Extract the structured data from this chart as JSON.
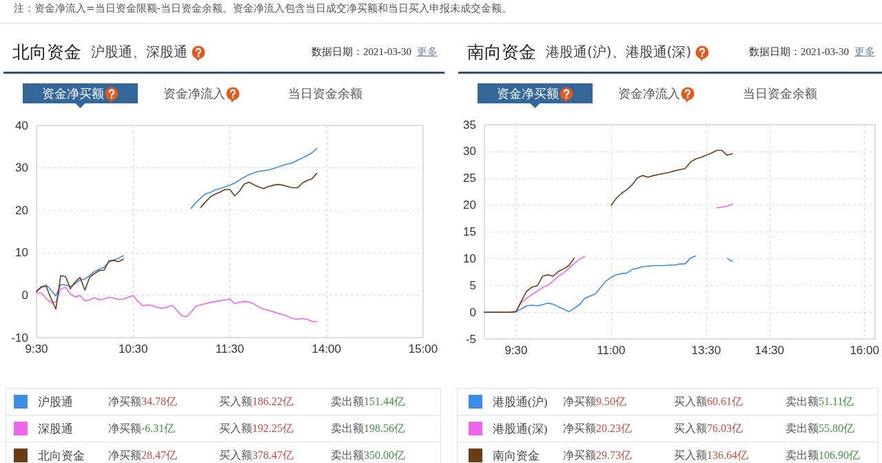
{
  "chart_data": [
    {
      "type": "line",
      "title": "北向资金",
      "subtitle": "沪股通、深股通",
      "categories": [
        "9:30",
        null,
        null,
        null,
        null,
        null,
        null,
        null,
        null,
        null,
        null,
        null,
        null,
        null,
        null,
        null,
        null,
        null,
        null,
        null,
        "10:30",
        null,
        null,
        null,
        null,
        null,
        null,
        null,
        null,
        null,
        null,
        null,
        null,
        null,
        null,
        null,
        null,
        null,
        null,
        null,
        "11:30",
        null,
        null,
        null,
        null,
        null,
        null,
        null,
        null,
        null,
        null,
        null,
        null,
        null,
        null,
        null,
        null,
        null,
        null,
        null,
        "14:00",
        null,
        null,
        null,
        null,
        null,
        null,
        null,
        null,
        null,
        null,
        null,
        null,
        null,
        null,
        null,
        null,
        null,
        null,
        null,
        "15:00"
      ],
      "ylim": [
        -10,
        40
      ],
      "yticks": [
        -10,
        0,
        10,
        20,
        30,
        40
      ],
      "grid": true,
      "legend": "bottom",
      "series": [
        {
          "name": "沪股通",
          "color": "#3a8ee8",
          "values": [
            0.8,
            1.8,
            2.4,
            1.2,
            -0.2,
            2.5,
            2.4,
            2.1,
            2.7,
            3.6,
            3.8,
            4.6,
            5.6,
            6.1,
            6.6,
            7.8,
            8.3,
            8.7,
            9.3,
            null,
            null,
            null,
            null,
            null,
            null,
            null,
            null,
            null,
            null,
            null,
            null,
            null,
            20.5,
            21.8,
            22.9,
            23.9,
            24.2,
            24.8,
            25.1,
            25.5,
            25.9,
            26.4,
            27.1,
            27.8,
            28.4,
            28.8,
            29.2,
            29.3,
            29.5,
            29.8,
            30.2,
            30.6,
            30.9,
            31.2,
            31.8,
            32.3,
            32.9,
            33.5,
            34.6,
            null,
            null,
            null,
            null,
            null,
            null,
            null,
            null,
            null,
            null,
            null,
            null,
            null,
            null,
            null,
            null,
            null,
            null,
            null,
            null,
            null,
            null
          ]
        },
        {
          "name": "深股通",
          "color": "#ee66ee",
          "values": [
            0.5,
            0.5,
            -0.8,
            -1.8,
            -1.6,
            1.5,
            1.8,
            0.3,
            -0.4,
            -0.1,
            -1.3,
            -1.1,
            -0.6,
            -1.1,
            -0.9,
            -0.5,
            -0.7,
            -1.0,
            -0.9,
            -0.5,
            -0.1,
            -1.5,
            -2.5,
            -2.3,
            -2.5,
            -2.9,
            -3.1,
            -2.8,
            -2.4,
            -3.5,
            -4.8,
            -5.1,
            -4.0,
            -2.6,
            -2.3,
            -2.0,
            -1.7,
            -1.5,
            -1.3,
            -1.1,
            -0.9,
            -2.0,
            -1.7,
            -1.5,
            -1.6,
            -2.1,
            -2.8,
            -3.3,
            -3.6,
            -3.9,
            -4.3,
            -4.6,
            -5.0,
            -5.5,
            -5.7,
            -5.5,
            -5.7,
            -6.2,
            -6.2,
            null,
            null,
            null,
            null,
            null,
            null,
            null,
            null,
            null,
            null,
            null,
            null,
            null,
            null,
            null,
            null,
            null,
            null,
            null,
            null,
            null,
            null
          ]
        },
        {
          "name": "北向资金",
          "color": "#6b3d14",
          "values": [
            0.9,
            2.0,
            2.1,
            -0.8,
            -3.3,
            4.6,
            4.4,
            1.5,
            3.1,
            4.2,
            1.2,
            4.2,
            5.1,
            5.8,
            5.9,
            8.1,
            8.2,
            7.9,
            8.5,
            null,
            null,
            null,
            null,
            null,
            null,
            null,
            null,
            null,
            null,
            null,
            null,
            null,
            null,
            null,
            20.7,
            22.0,
            23.2,
            23.8,
            24.3,
            24.9,
            24.9,
            23.4,
            24.5,
            26.2,
            26.6,
            26.0,
            25.5,
            25.1,
            25.6,
            25.9,
            26.1,
            25.9,
            25.6,
            25.3,
            25.3,
            26.4,
            27.0,
            27.4,
            28.7,
            null,
            null,
            null,
            null,
            null,
            null,
            null,
            null,
            null,
            null,
            null,
            null,
            null,
            null,
            null,
            null,
            null,
            null,
            null,
            null,
            null,
            null
          ]
        }
      ],
      "annotations": [
        "数据日期：2021-03-30",
        "更多",
        "资金净买额",
        "资金净流入",
        "当日资金余额",
        "净买额34.78亿",
        "买入额186.22亿",
        "卖出额151.44亿",
        "净买额-6.31亿",
        "买入额192.25亿",
        "卖出额198.56亿",
        "净买额28.47亿",
        "买入额378.47亿",
        "卖出额350.00亿",
        "注：资金净流入=当日资金限额-当日资金余额。资金净流入包含当日成交净买额和当日买入申报未成交金额。"
      ]
    },
    {
      "type": "line",
      "title": "南向资金",
      "subtitle": "港股通(沪)、港股通(深)",
      "categories": [
        null,
        null,
        null,
        null,
        null,
        null,
        "9:30",
        null,
        null,
        null,
        null,
        null,
        null,
        null,
        null,
        null,
        null,
        null,
        null,
        null,
        null,
        null,
        null,
        null,
        "11:00",
        null,
        null,
        null,
        null,
        null,
        null,
        null,
        null,
        null,
        null,
        null,
        null,
        null,
        null,
        null,
        null,
        null,
        "13:30",
        null,
        null,
        null,
        null,
        null,
        null,
        null,
        null,
        null,
        null,
        null,
        "14:30",
        null,
        null,
        null,
        null,
        null,
        null,
        null,
        null,
        null,
        null,
        null,
        null,
        null,
        null,
        null,
        null,
        null,
        "16:00",
        null,
        null
      ],
      "ylim": [
        -5,
        35
      ],
      "yticks": [
        -5,
        0,
        5,
        10,
        15,
        20,
        25,
        30,
        35
      ],
      "grid": true,
      "legend": "bottom",
      "series": [
        {
          "name": "港股通(沪)",
          "color": "#3a8ee8",
          "values": [
            null,
            null,
            null,
            null,
            null,
            0,
            0.1,
            0.6,
            1.2,
            1.3,
            1.2,
            1.4,
            1.7,
            1.5,
            1.0,
            0.6,
            0.1,
            0.7,
            1.4,
            2.6,
            3.0,
            3.4,
            4.6,
            5.8,
            6.5,
            7.0,
            7.2,
            7.3,
            8.0,
            8.2,
            8.5,
            8.6,
            8.7,
            8.7,
            8.7,
            8.8,
            8.8,
            9.0,
            9.0,
            10.1,
            10.5,
            null,
            null,
            null,
            null,
            null,
            10.0,
            9.5,
            null,
            null,
            null,
            null,
            null,
            null,
            null,
            null,
            null,
            null,
            null,
            null,
            null,
            null,
            null,
            null,
            null,
            null,
            null,
            null,
            null,
            null,
            null,
            null,
            null,
            null,
            null
          ]
        },
        {
          "name": "港股通(深)",
          "color": "#ee66ee",
          "values": [
            null,
            null,
            null,
            null,
            null,
            0,
            0.1,
            1.8,
            2.6,
            3.3,
            3.9,
            4.6,
            5.0,
            5.8,
            6.7,
            7.3,
            8.2,
            9.1,
            9.9,
            10.4,
            null,
            null,
            null,
            null,
            null,
            null,
            null,
            null,
            null,
            null,
            null,
            null,
            null,
            null,
            null,
            null,
            null,
            null,
            null,
            null,
            null,
            null,
            null,
            null,
            19.5,
            19.6,
            19.8,
            20.2,
            null,
            null,
            null,
            null,
            null,
            null,
            null,
            null,
            null,
            null,
            null,
            null,
            null,
            null,
            null,
            null,
            null,
            null,
            null,
            null,
            null,
            null,
            null,
            null,
            null,
            null,
            null
          ]
        },
        {
          "name": "南向资金",
          "color": "#6b3d14",
          "values": [
            0,
            0,
            0,
            0,
            0,
            0,
            0.1,
            2.1,
            3.9,
            4.7,
            4.9,
            6.7,
            7.0,
            6.7,
            7.6,
            8.1,
            8.7,
            10.1,
            null,
            null,
            null,
            null,
            null,
            null,
            19.9,
            21.3,
            22.2,
            22.9,
            23.8,
            25.1,
            25.5,
            25.2,
            25.5,
            25.7,
            25.9,
            26.1,
            26.4,
            26.6,
            26.8,
            28.0,
            28.6,
            28.9,
            29.3,
            29.7,
            30.2,
            30.2,
            29.3,
            29.6,
            null,
            null,
            null,
            null,
            null,
            null,
            null,
            null,
            null,
            null,
            null,
            null,
            null,
            null,
            null,
            null,
            null,
            null,
            null,
            null,
            null,
            null,
            null,
            null,
            null,
            null,
            null
          ]
        }
      ],
      "annotations": [
        "数据日期：2021-03-30",
        "更多",
        "资金净买额",
        "资金净流入",
        "当日资金余额",
        "净买额9.50亿",
        "买入额60.61亿",
        "卖出额51.11亿",
        "净买额20.23亿",
        "买入额76.03亿",
        "卖出额55.80亿",
        "净买额29.73亿",
        "买入额136.64亿",
        "卖出额106.90亿"
      ]
    }
  ]
}
